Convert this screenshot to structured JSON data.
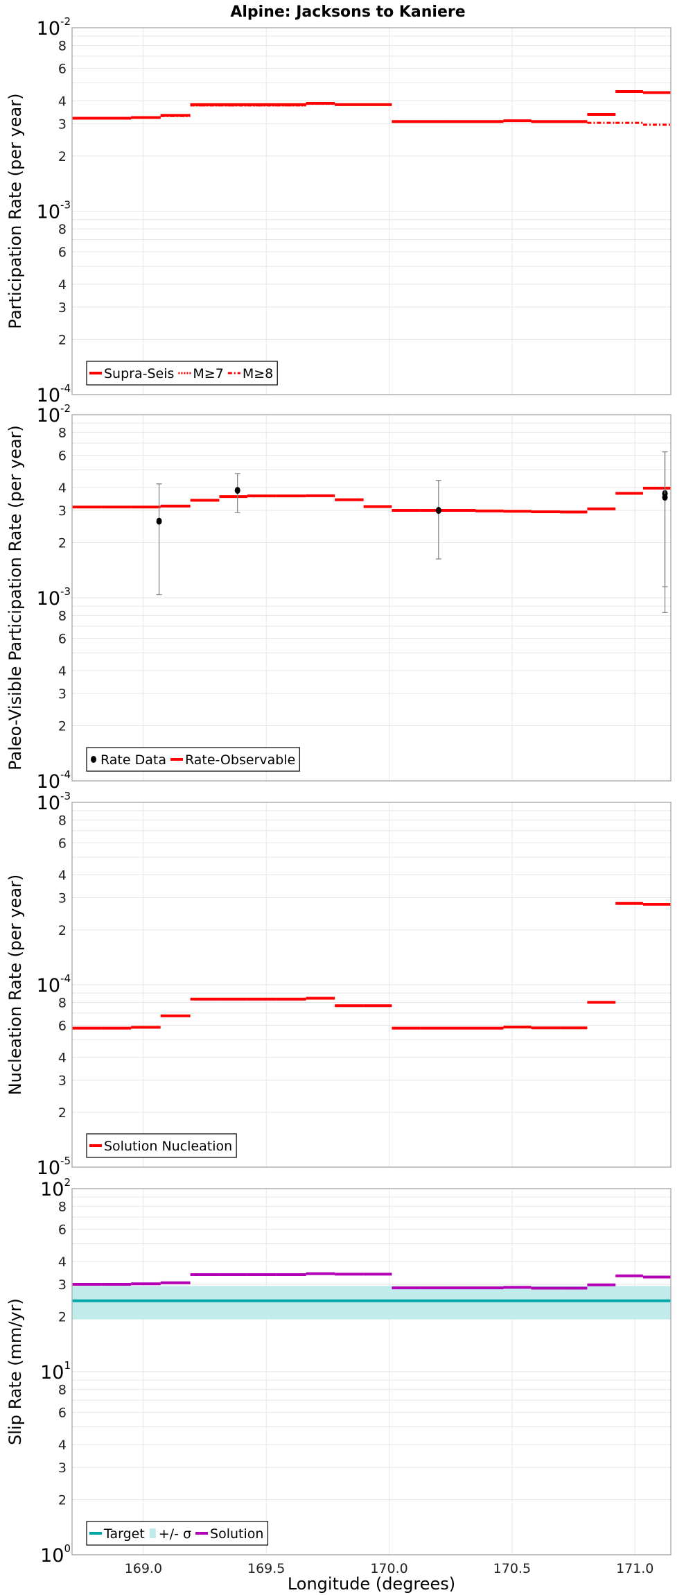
{
  "title": "Alpine: Jacksons to Kaniere",
  "xlabel": "Longitude (degrees)",
  "colors": {
    "red": "#ff0000",
    "target": "#00a8a8",
    "band": "#c2ecec",
    "solution": "#b400b4",
    "point": "#000000",
    "errbar": "#888888",
    "grid": "#e6e6e6",
    "frame": "#b0b0b0"
  },
  "chart_data": [
    {
      "type": "line",
      "title": "Alpine: Jacksons to Kaniere",
      "ylabel": "Participation Rate (per year)",
      "xlabel": "Longitude (degrees)",
      "xlim": [
        168.71,
        171.146
      ],
      "xticks": [
        "169.0",
        "169.5",
        "170.0",
        "170.5",
        "171.0"
      ],
      "yscale": "log",
      "ylim": [
        0.0001,
        0.01
      ],
      "ytick_base": "10",
      "ytick_exponents": [
        "-4",
        "-3",
        "-2"
      ],
      "ytick_minor_labels": [
        "2",
        "3",
        "4",
        "6",
        "8"
      ],
      "legend": "bottom-left",
      "edges": [
        168.71,
        168.831,
        168.95,
        169.07,
        169.191,
        169.309,
        169.423,
        169.541,
        169.662,
        169.779,
        169.896,
        170.011,
        170.126,
        170.238,
        170.351,
        170.465,
        170.578,
        170.695,
        170.806,
        170.921,
        171.033,
        171.146
      ],
      "series": [
        {
          "name": "Supra-Seis",
          "style": "solid",
          "color": "#ff0000",
          "values": [
            0.00321,
            0.00321,
            0.00324,
            0.00333,
            0.00381,
            0.00381,
            0.00381,
            0.00381,
            0.00387,
            0.00381,
            0.00381,
            0.00308,
            0.00308,
            0.00308,
            0.00308,
            0.00311,
            0.00308,
            0.00308,
            0.00337,
            0.00449,
            0.00443
          ]
        },
        {
          "name": "M≥7",
          "style": "dotted",
          "color": "#ff0000",
          "values": [
            0.00321,
            0.00321,
            0.00324,
            0.00333,
            0.00377,
            0.00377,
            0.00377,
            0.00377,
            0.00385,
            0.00381,
            0.00381,
            0.00308,
            0.00308,
            0.00308,
            0.00308,
            0.00311,
            0.00308,
            0.00308,
            0.00337,
            0.00449,
            0.00443
          ]
        },
        {
          "name": "M≥8",
          "style": "dashdot",
          "color": "#ff0000",
          "values": [
            0.00321,
            0.00321,
            0.00324,
            0.0033,
            0.00377,
            0.00377,
            0.00377,
            0.00377,
            0.00385,
            0.00381,
            0.00381,
            0.00308,
            0.00308,
            0.00308,
            0.00308,
            0.00311,
            0.00308,
            0.00308,
            0.00303,
            0.00303,
            0.00296
          ]
        }
      ]
    },
    {
      "type": "line",
      "ylabel": "Paleo-Visible Participation Rate (per year)",
      "xlim": [
        168.71,
        171.146
      ],
      "yscale": "log",
      "ylim": [
        0.0001,
        0.01
      ],
      "ytick_base": "10",
      "ytick_exponents": [
        "-4",
        "-3",
        "-2"
      ],
      "ytick_minor_labels": [
        "2",
        "3",
        "4",
        "6",
        "8"
      ],
      "legend": "bottom-left",
      "edges": [
        168.71,
        168.831,
        168.95,
        169.07,
        169.191,
        169.309,
        169.423,
        169.541,
        169.662,
        169.779,
        169.896,
        170.011,
        170.126,
        170.238,
        170.351,
        170.465,
        170.578,
        170.695,
        170.806,
        170.921,
        171.033,
        171.146
      ],
      "series": [
        {
          "name": "Rate-Observable",
          "style": "solid",
          "color": "#ff0000",
          "values": [
            0.00313,
            0.00313,
            0.00313,
            0.00317,
            0.00341,
            0.00357,
            0.0036,
            0.0036,
            0.00361,
            0.00343,
            0.00315,
            0.003,
            0.003,
            0.003,
            0.00298,
            0.00297,
            0.00295,
            0.00294,
            0.00306,
            0.00372,
            0.00397
          ]
        }
      ],
      "points": {
        "name": "Rate Data",
        "data": [
          {
            "x": 169.064,
            "y": 0.00262,
            "lo": 0.00104,
            "hi": 0.00419
          },
          {
            "x": 169.383,
            "y": 0.00386,
            "lo": 0.00292,
            "hi": 0.00477
          },
          {
            "x": 170.201,
            "y": 0.003,
            "lo": 0.00163,
            "hi": 0.00438
          },
          {
            "x": 171.122,
            "y": 0.00371,
            "lo": 0.00115,
            "hi": 0.00627
          },
          {
            "x": 171.122,
            "y": 0.00354,
            "lo": 0.00083,
            "hi": 0.00627
          }
        ]
      }
    },
    {
      "type": "line",
      "ylabel": "Nucleation Rate (per year)",
      "xlim": [
        168.71,
        171.146
      ],
      "yscale": "log",
      "ylim": [
        1e-05,
        0.001
      ],
      "ytick_base": "10",
      "ytick_exponents": [
        "-5",
        "-4",
        "-3"
      ],
      "ytick_minor_labels": [
        "2",
        "3",
        "4",
        "6",
        "8"
      ],
      "legend": "bottom-left",
      "edges": [
        168.71,
        168.831,
        168.95,
        169.07,
        169.191,
        169.309,
        169.423,
        169.541,
        169.662,
        169.779,
        169.896,
        170.011,
        170.126,
        170.238,
        170.351,
        170.465,
        170.578,
        170.695,
        170.806,
        170.921,
        171.033,
        171.146
      ],
      "series": [
        {
          "name": "Solution Nucleation",
          "style": "solid",
          "color": "#ff0000",
          "values": [
            5.78e-05,
            5.78e-05,
            5.84e-05,
            6.75e-05,
            8.34e-05,
            8.34e-05,
            8.34e-05,
            8.34e-05,
            8.43e-05,
            7.67e-05,
            7.67e-05,
            5.78e-05,
            5.78e-05,
            5.78e-05,
            5.78e-05,
            5.86e-05,
            5.8e-05,
            5.8e-05,
            8.01e-05,
            0.000279,
            0.000276
          ]
        }
      ]
    },
    {
      "type": "line",
      "ylabel": "Slip Rate (mm/yr)",
      "xlim": [
        168.71,
        171.146
      ],
      "yscale": "log",
      "ylim": [
        1,
        100
      ],
      "ytick_base": "10",
      "ytick_exponents": [
        "0",
        "1",
        "2"
      ],
      "ytick_minor_labels": [
        "2",
        "3",
        "4",
        "6",
        "8"
      ],
      "legend": "bottom-left",
      "edges": [
        168.71,
        168.831,
        168.95,
        169.07,
        169.191,
        169.309,
        169.423,
        169.541,
        169.662,
        169.779,
        169.896,
        170.011,
        170.126,
        170.238,
        170.351,
        170.465,
        170.578,
        170.695,
        170.806,
        170.921,
        171.033,
        171.146
      ],
      "target": {
        "name": "Target",
        "value": 24.4
      },
      "band": {
        "name": "+/- σ",
        "lo": 19.3,
        "hi": 29.4
      },
      "series": [
        {
          "name": "Solution",
          "style": "solid",
          "color": "#b400b4",
          "values": [
            30.0,
            30.0,
            30.2,
            30.6,
            33.9,
            33.9,
            33.9,
            33.9,
            34.3,
            34.1,
            34.1,
            28.7,
            28.7,
            28.7,
            28.7,
            28.9,
            28.6,
            28.6,
            29.8,
            33.4,
            32.9
          ]
        }
      ]
    }
  ]
}
